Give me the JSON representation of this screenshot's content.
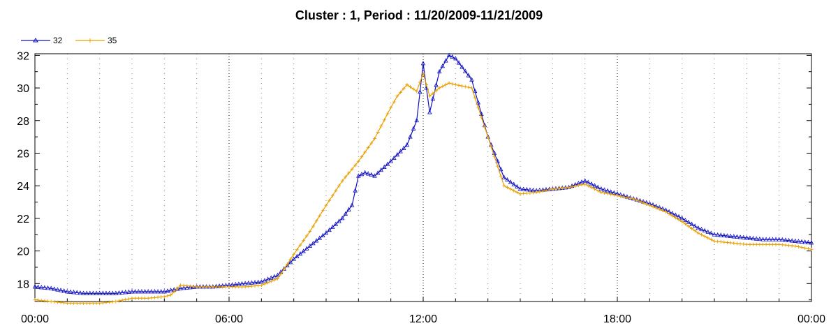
{
  "chart_data": {
    "type": "line",
    "title": "Cluster : 1, Period : 11/20/2009-11/21/2009",
    "xlabel": "",
    "ylabel": "",
    "x_ticks": [
      "00:00",
      "06:00",
      "12:00",
      "18:00",
      "00:00"
    ],
    "x_tick_hours": [
      0,
      6,
      12,
      18,
      24
    ],
    "x_range_hours": [
      0,
      24
    ],
    "y_ticks": [
      18,
      20,
      22,
      24,
      26,
      28,
      30,
      32
    ],
    "ylim": [
      16.9,
      32.1
    ],
    "grid": "vertical dotted lines, major every 6 hours",
    "legend_position": "top-left",
    "series": [
      {
        "name": "32",
        "color": "#1010c0",
        "marker": "triangle",
        "x": [
          0,
          0.5,
          1,
          1.5,
          2,
          2.5,
          3,
          3.5,
          4,
          4.5,
          5,
          5.5,
          6,
          6.5,
          7,
          7.5,
          8,
          8.5,
          9,
          9.5,
          9.8,
          10,
          10.2,
          10.5,
          11,
          11.5,
          11.8,
          12,
          12.2,
          12.5,
          12.8,
          13,
          13.5,
          14,
          14.5,
          15,
          15.5,
          16,
          16.5,
          17,
          17.3,
          17.5,
          18,
          18.5,
          19,
          19.5,
          20,
          20.5,
          21,
          21.5,
          22,
          22.5,
          23,
          23.5,
          24
        ],
        "y": [
          17.8,
          17.7,
          17.5,
          17.4,
          17.4,
          17.4,
          17.5,
          17.5,
          17.5,
          17.7,
          17.8,
          17.8,
          17.9,
          18.0,
          18.1,
          18.5,
          19.5,
          20.3,
          21.1,
          22.0,
          22.8,
          24.6,
          24.8,
          24.6,
          25.5,
          26.5,
          28.0,
          31.5,
          28.5,
          31.0,
          32.0,
          31.8,
          30.5,
          27.0,
          24.5,
          23.8,
          23.7,
          23.8,
          23.9,
          24.3,
          24.0,
          23.8,
          23.5,
          23.2,
          22.9,
          22.5,
          22.0,
          21.4,
          21.0,
          20.9,
          20.8,
          20.7,
          20.7,
          20.6,
          20.5
        ]
      },
      {
        "name": "35",
        "color": "#e8a000",
        "marker": "plus",
        "x": [
          0,
          0.5,
          1,
          1.5,
          2,
          2.5,
          3,
          3.5,
          4,
          4.2,
          4.5,
          5,
          5.5,
          6,
          6.5,
          7,
          7.5,
          8,
          8.5,
          9,
          9.5,
          10,
          10.5,
          11,
          11.2,
          11.5,
          11.8,
          12,
          12.2,
          12.5,
          12.8,
          13,
          13.5,
          14,
          14.5,
          15,
          15.5,
          16,
          16.5,
          17,
          17.5,
          18,
          18.5,
          19,
          19.5,
          20,
          20.5,
          21,
          21.5,
          22,
          22.5,
          23,
          23.5,
          24
        ],
        "y": [
          17.0,
          16.9,
          16.8,
          16.8,
          16.8,
          16.9,
          17.1,
          17.1,
          17.2,
          17.3,
          17.9,
          17.8,
          17.8,
          17.8,
          17.8,
          17.9,
          18.3,
          19.8,
          21.2,
          22.8,
          24.3,
          25.5,
          26.9,
          28.8,
          29.5,
          30.2,
          29.8,
          30.9,
          29.5,
          30.0,
          30.3,
          30.2,
          30.0,
          27.0,
          24.0,
          23.5,
          23.6,
          23.8,
          23.9,
          24.1,
          23.6,
          23.4,
          23.2,
          22.8,
          22.4,
          21.8,
          21.1,
          20.6,
          20.5,
          20.4,
          20.4,
          20.4,
          20.3,
          20.1
        ]
      }
    ]
  }
}
